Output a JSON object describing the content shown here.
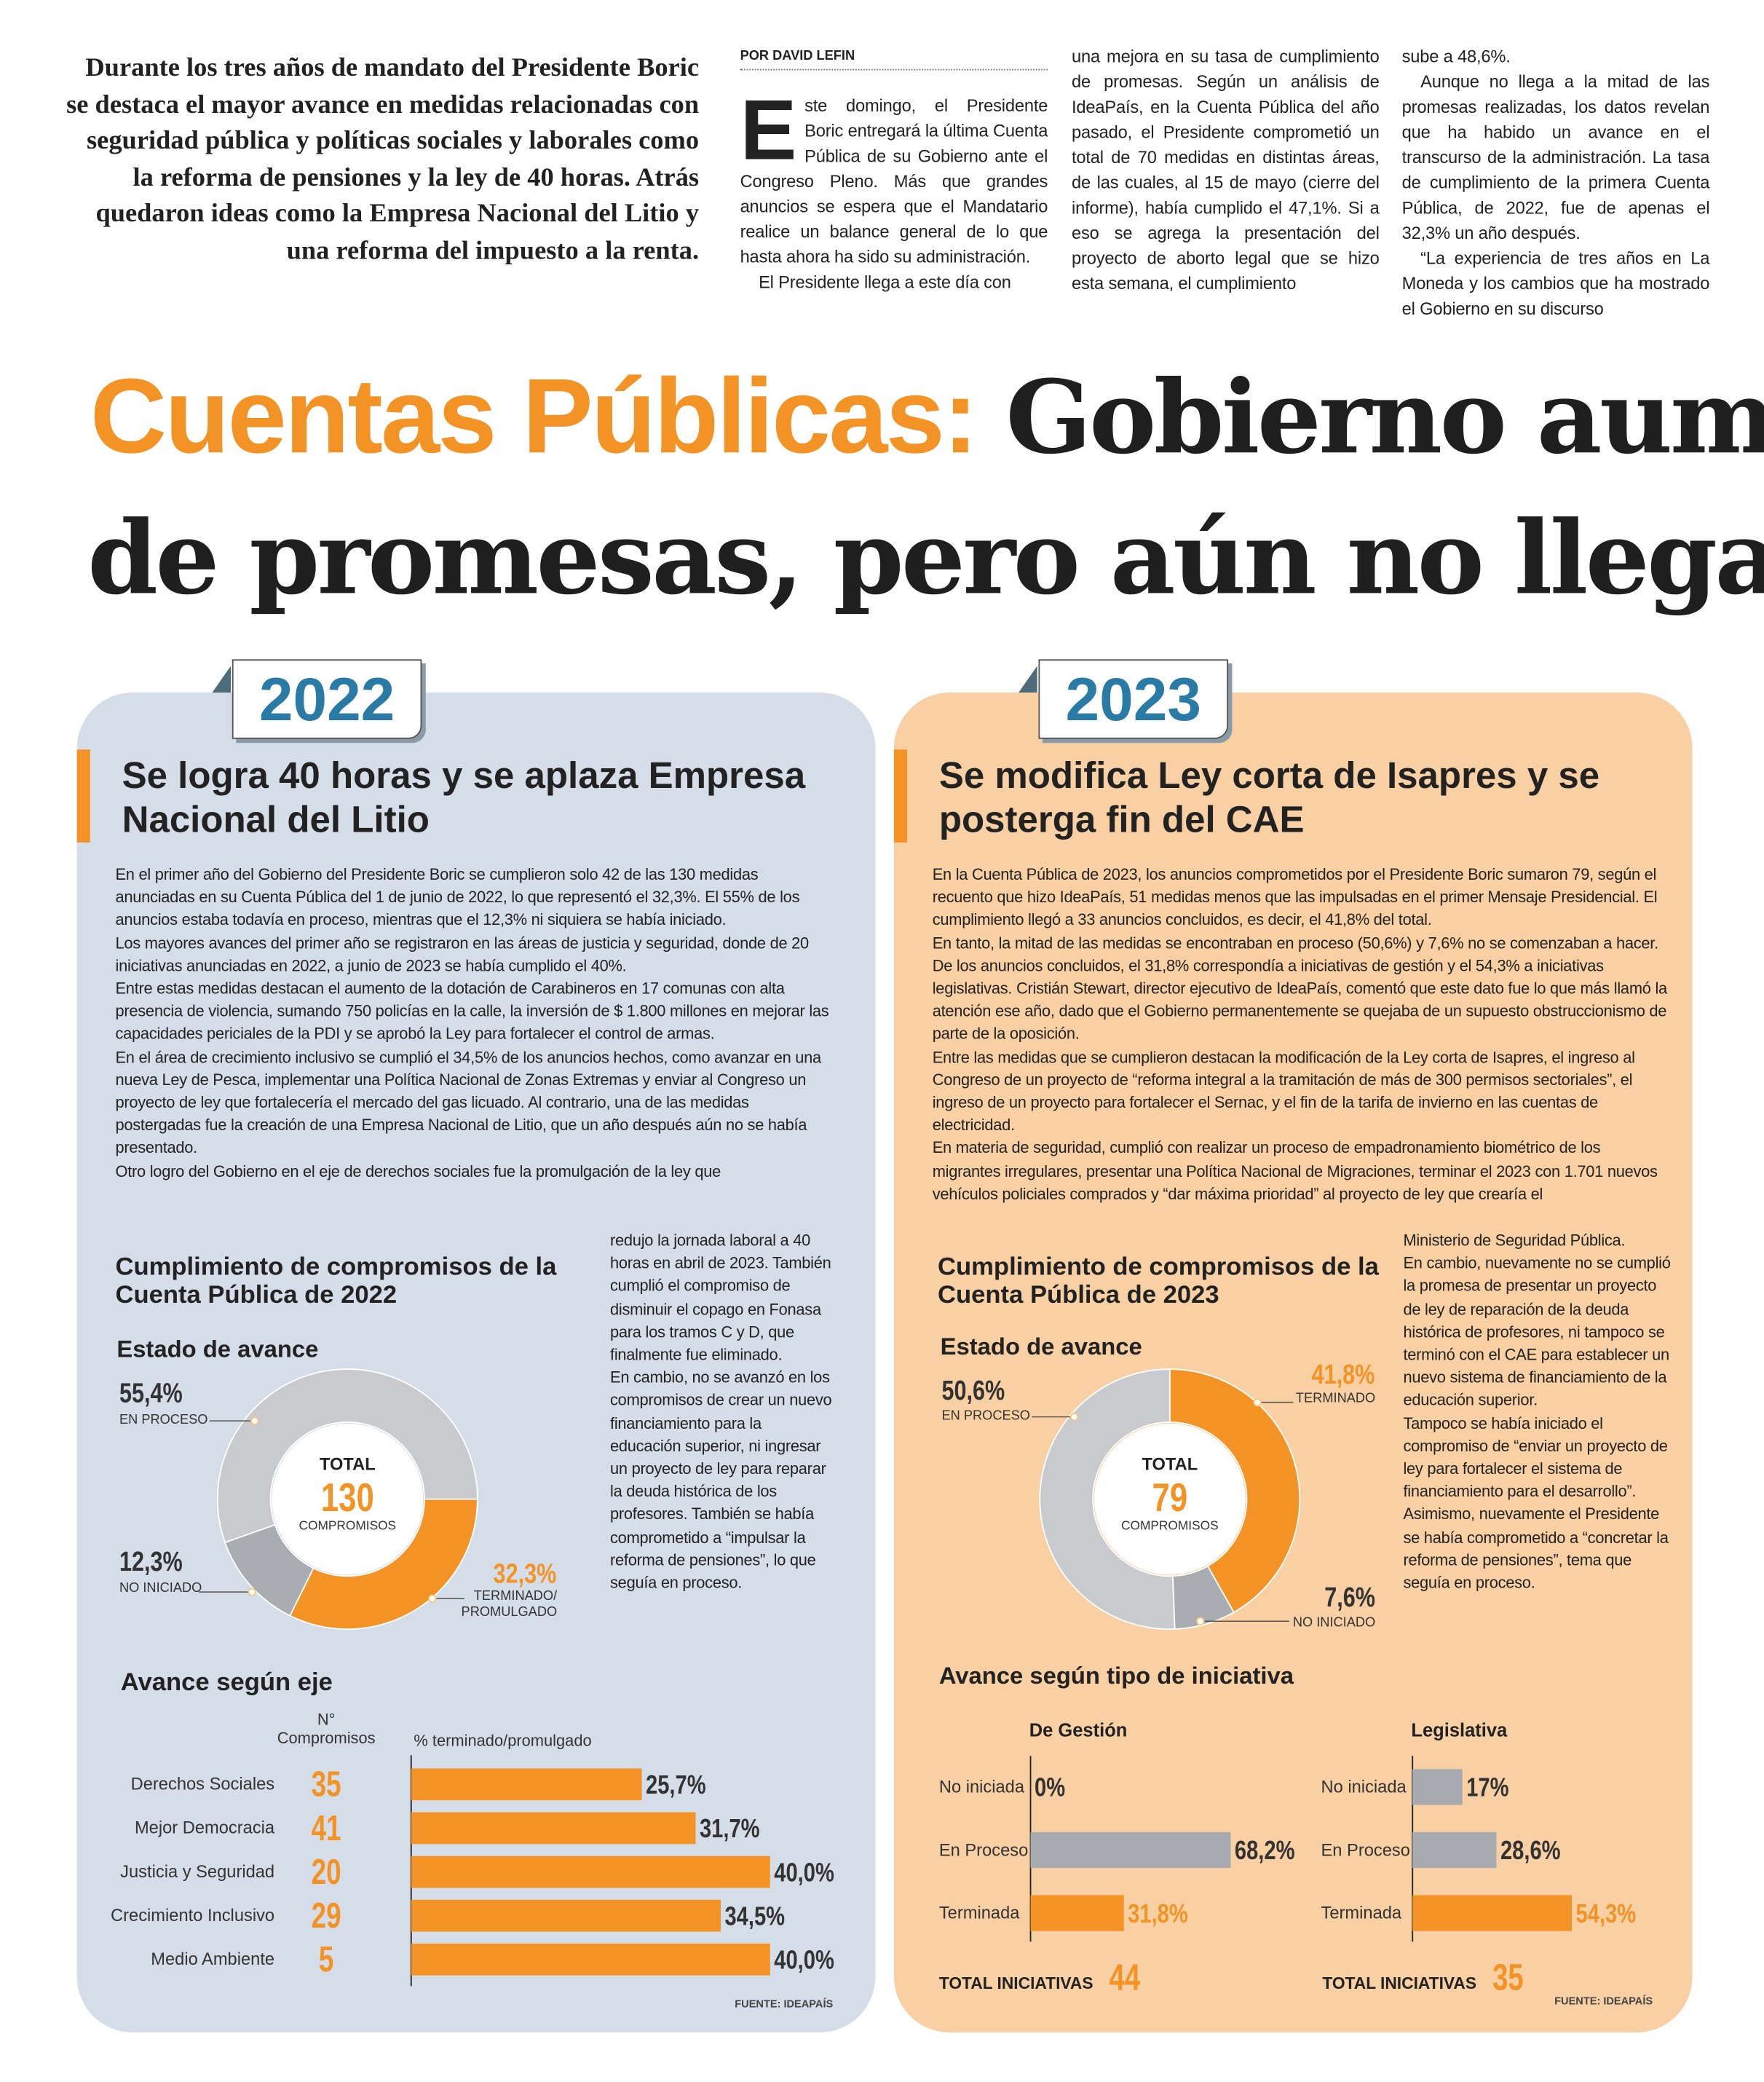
{
  "deck": "Durante los tres años de mandato del Presidente Boric se destaca el mayor avance en medidas relacionadas con seguridad pública y políticas sociales y laborales como la reforma de pensiones y la ley de 40 horas. Atrás quedaron ideas como la Empresa Nacional del Litio y una reforma del impuesto a la renta.",
  "byline": "POR DAVID LEFIN",
  "article": {
    "columns": [
      [
        "Este domingo, el Presidente Boric entregará la última Cuenta Pública de su Gobierno ante el Congreso Pleno. Más que grandes anuncios se espera que el Mandatario realice un balance general de lo que hasta ahora ha sido su administración.",
        "El Presidente llega a este día con"
      ],
      [
        "una mejora en su tasa de cumplimiento de promesas. Según un análisis de IdeaPaís, en la Cuenta Pública del año pasado, el Presidente comprometió un total de 70 medidas en distintas áreas, de las cuales, al 15 de mayo (cierre del informe), había cumplido el 47,1%. Si a eso se agrega la presentación del proyecto de aborto legal que se hizo esta semana, el cumplimiento"
      ],
      [
        "sube a 48,6%.",
        "Aunque no llega a la mitad de las promesas realizadas, los datos revelan que ha habido un avance en el transcurso de la administración. La tasa de cumplimiento de la primera Cuenta Pública, de 2022, fue de apenas el 32,3% un año después.",
        "“La experiencia de tres años en La Moneda y los cambios que ha mostrado el Gobierno en su discurso"
      ]
    ]
  },
  "headline": {
    "highlight": "Cuentas Públicas:",
    "line1": "Gobierno aum",
    "line2": "de promesas, pero aún no llega"
  },
  "panels": [
    {
      "year": "2022",
      "heading": "Se logra 40 horas y se aplaza Empresa Nacional del Litio",
      "body": [
        "En el primer año del Gobierno del Presidente Boric se cumplieron solo 42 de las 130 medidas anunciadas en su Cuenta Pública del 1 de junio de 2022, lo que representó el 32,3%. El 55% de los anuncios estaba todavía en proceso, mientras que el 12,3% ni siquiera se había iniciado.",
        "Los mayores avances del primer año se registraron en las áreas de justicia y seguridad, donde de 20 iniciativas anunciadas en 2022, a junio de 2023 se había cumplido el 40%.",
        "Entre estas medidas destacan el aumento de la dotación de Carabineros en 17 comunas con alta presencia de violencia, sumando 750 policías en la calle, la inversión de $ 1.800 millones en mejorar las capacidades periciales de la PDI y se aprobó la Ley para fortalecer el control de armas.",
        "En el área de crecimiento inclusivo se cumplió el 34,5% de los anuncios hechos, como avanzar en una nueva Ley de Pesca, implementar una Política Nacional de Zonas Extremas y enviar al Congreso un proyecto de ley que fortalecería el mercado del gas licuado. Al contrario, una de las medidas postergadas fue la creación de una Empresa Nacional de Litio, que un año después aún no se había presentado.",
        "Otro logro del Gobierno en el eje de derechos sociales fue la promulgación de la ley que"
      ],
      "sidebar": [
        "redujo la jornada laboral a 40 horas en abril de 2023. También cumplió el compromiso de disminuir el copago en Fonasa para los tramos C y D, que finalmente fue eliminado.",
        "En cambio, no se avanzó en los compromisos de crear un nuevo financiamiento para la educación superior, ni ingresar un proyecto de ley para reparar la deuda histórica de los profesores. También se había comprometido a “impulsar la reforma de pensiones”, lo que seguía en proceso."
      ],
      "source": "FUENTE: IDEAPAÍS"
    },
    {
      "year": "2023",
      "heading": "Se modifica Ley corta de Isapres y se posterga fin del CAE",
      "body": [
        "En la Cuenta Pública de 2023, los anuncios comprometidos por el Presidente Boric sumaron 79, según el recuento que hizo IdeaPaís, 51 medidas menos que las impulsadas en el primer Mensaje Presidencial. El cumplimiento llegó a 33 anuncios concluidos, es decir, el 41,8% del total.",
        "En tanto, la mitad de las medidas se encontraban en proceso (50,6%) y 7,6% no se comenzaban a hacer.",
        "De los anuncios concluidos, el 31,8% correspondía a iniciativas de gestión y el 54,3% a iniciativas legislativas. Cristián Stewart, director ejecutivo de IdeaPaís, comentó que este dato fue lo que más llamó la atención ese año, dado que el Gobierno permanentemente se quejaba de un supuesto obstruccionismo de parte de la oposición.",
        "Entre las medidas que se cumplieron destacan la modificación de la Ley corta de Isapres, el ingreso al Congreso de un proyecto de “reforma integral a la tramitación de más de 300 permisos sectoriales”, el ingreso de un proyecto para fortalecer el Sernac, y el fin de la tarifa de invierno en las cuentas de electricidad.",
        "En materia de seguridad, cumplió con realizar un proceso de empadronamiento biométrico de los migrantes irregulares, presentar una Política Nacional de Migraciones, terminar el 2023 con 1.701 nuevos vehículos policiales comprados y “dar máxima prioridad” al proyecto de ley que crearía el"
      ],
      "sidebar": [
        "Ministerio de Seguridad Pública.",
        "En cambio, nuevamente no se cumplió la promesa de presentar un proyecto de ley de reparación de la deuda histórica de profesores, ni tampoco se terminó con el CAE para establecer un nuevo sistema de financiamiento de la educación superior.",
        "Tampoco se había iniciado el compromiso de “enviar un proyecto de ley para fortalecer el sistema de financiamiento para el desarrollo”. Asimismo, nuevamente el Presidente se había comprometido a “concretar la reforma de pensiones”, tema que seguía en proceso."
      ],
      "bars_title": "Avance según tipo de iniciativa",
      "source": "FUENTE: IDEAPAÍS"
    }
  ],
  "chart_data": [
    {
      "type": "pie",
      "donut": true,
      "title": "Cumplimiento de compromisos de la Cuenta Pública de 2022",
      "subtitle": "Estado de avance",
      "categories": [
        "TERMINADO/ PROMULGADO",
        "NO INICIADO",
        "EN PROCESO"
      ],
      "values": [
        32.3,
        12.3,
        55.4
      ],
      "value_labels": [
        "32,3%",
        "12,3%",
        "55,4%"
      ],
      "colors": [
        "#f39325",
        "#a9acb0",
        "#c8cacd"
      ],
      "total_label": "TOTAL",
      "total": 130,
      "total_unit": "COMPROMISOS"
    },
    {
      "type": "bar",
      "orientation": "horizontal",
      "title": "Avance según eje",
      "categories": [
        "Derechos Sociales",
        "Mejor Democracia",
        "Justicia y Seguridad",
        "Crecimiento Inclusivo",
        "Medio Ambiente"
      ],
      "series": [
        {
          "name": "N° Compromisos",
          "color": "#f39325",
          "values": [
            35,
            41,
            20,
            29,
            5
          ]
        },
        {
          "name": "% terminado/promulgado",
          "color": "#f39325",
          "values": [
            25.7,
            31.7,
            40.0,
            34.5,
            40.0
          ],
          "value_labels": [
            "25,7%",
            "31,7%",
            "40,0%",
            "34,5%",
            "40,0%"
          ]
        }
      ],
      "xlim": [
        0,
        47
      ]
    },
    {
      "type": "pie",
      "donut": true,
      "title": "Cumplimiento de compromisos de la Cuenta Pública de 2023",
      "subtitle": "Estado de avance",
      "categories": [
        "TERMINADO",
        "NO INICIADO",
        "EN PROCESO"
      ],
      "values": [
        41.8,
        7.6,
        50.6
      ],
      "value_labels": [
        "41,8%",
        "7,6%",
        "50,6%"
      ],
      "colors": [
        "#f39325",
        "#a9acb0",
        "#c8cacd"
      ],
      "total_label": "TOTAL",
      "total": 79,
      "total_unit": "COMPROMISOS"
    },
    {
      "type": "bar",
      "orientation": "horizontal",
      "title": "De Gestión",
      "categories": [
        "No iniciada",
        "En Proceso",
        "Terminada"
      ],
      "values": [
        0,
        68.2,
        31.8
      ],
      "value_labels": [
        "0%",
        "68,2%",
        "31,8%"
      ],
      "colors": [
        "#a7abb0",
        "#a7abb0",
        "#f39325"
      ],
      "xlim": [
        0,
        80
      ],
      "total_label": "TOTAL INICIATIVAS",
      "total": 44
    },
    {
      "type": "bar",
      "orientation": "horizontal",
      "title": "Legislativa",
      "categories": [
        "No iniciada",
        "En Proceso",
        "Terminada"
      ],
      "values": [
        17,
        28.6,
        54.3
      ],
      "value_labels": [
        "17%",
        "28,6%",
        "54,3%"
      ],
      "colors": [
        "#a7abb0",
        "#a7abb0",
        "#f39325"
      ],
      "xlim": [
        0,
        80
      ],
      "total_label": "TOTAL INICIATIVAS",
      "total": 35
    }
  ]
}
